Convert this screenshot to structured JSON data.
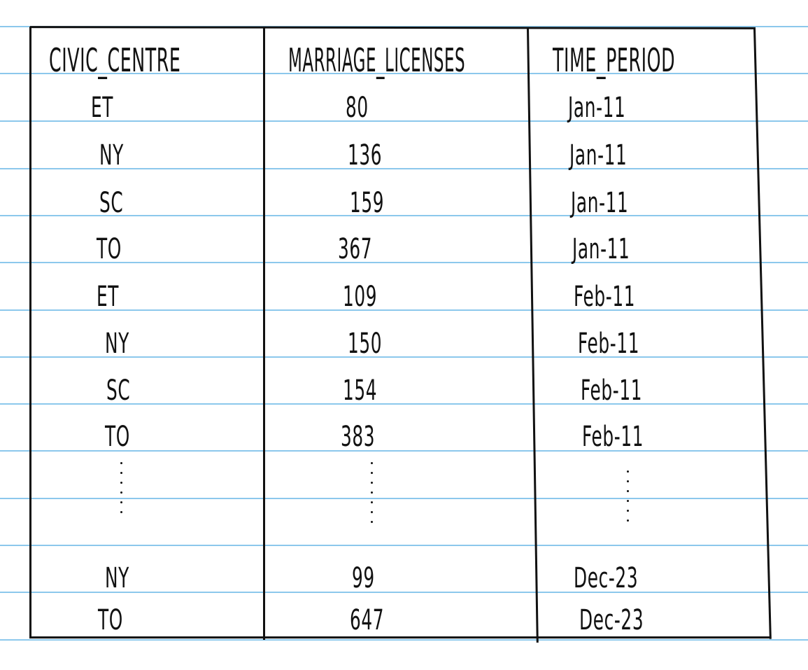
{
  "table": {
    "headers": [
      "CIVIC_CENTRE",
      "MARRIAGE_LICENSES",
      "TIME_PERIOD"
    ],
    "rows": [
      [
        "ET",
        "80",
        "Jan-11"
      ],
      [
        "NY",
        "136",
        "Jan-11"
      ],
      [
        "SC",
        "159",
        "Jan-11"
      ],
      [
        "TO",
        "367",
        "Jan-11"
      ],
      [
        "ET",
        "109",
        "Feb-11"
      ],
      [
        "NY",
        "150",
        "Feb-11"
      ],
      [
        "SC",
        "154",
        "Feb-11"
      ],
      [
        "TO",
        "383",
        "Feb-11"
      ],
      [
        "NY",
        "99",
        "Dec-23"
      ],
      [
        "TO",
        "647",
        "Dec-23"
      ]
    ],
    "ellipsis": "⋮"
  },
  "colors": {
    "ink": "#111111",
    "rule": "#8cc8ec",
    "paper": "#ffffff"
  }
}
